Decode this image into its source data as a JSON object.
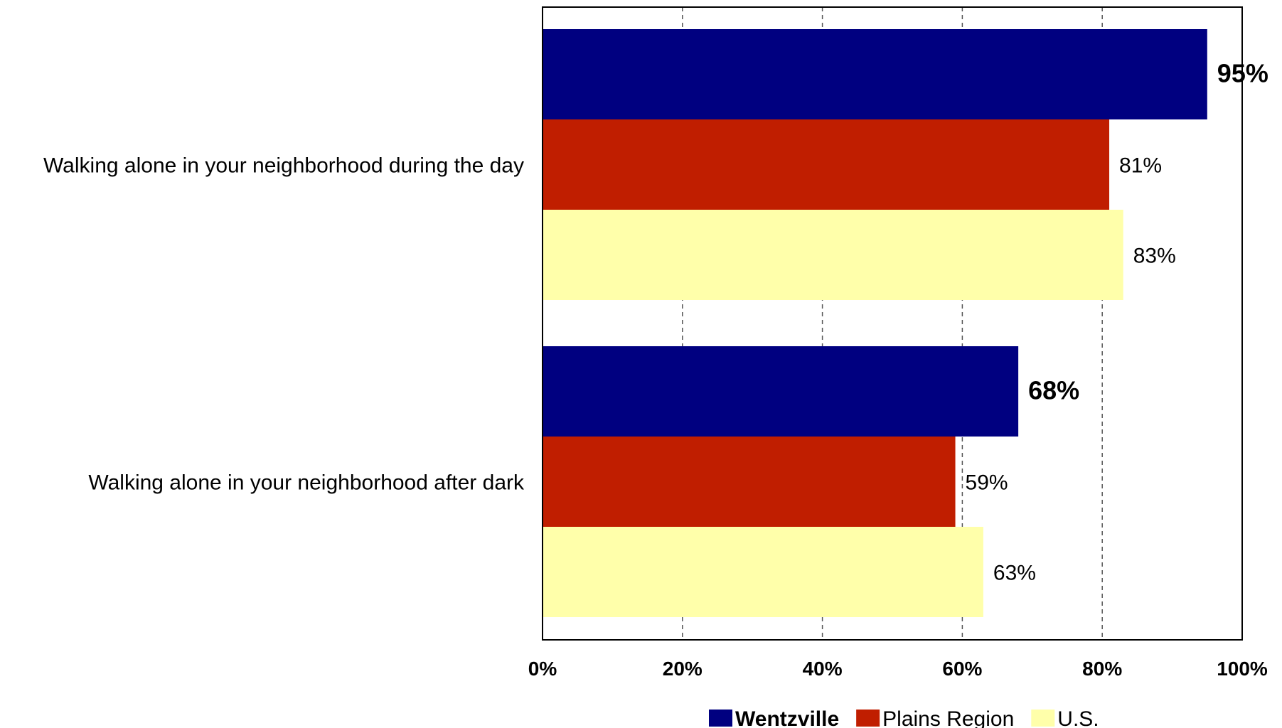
{
  "chart_data": {
    "type": "bar",
    "orientation": "horizontal",
    "categories": [
      "Walking alone in your neighborhood during the day",
      "Walking alone in your neighborhood after dark"
    ],
    "series": [
      {
        "name": "Wentzville",
        "values": [
          95,
          68
        ],
        "labels": [
          "95%",
          "68%"
        ],
        "color": "#000080",
        "bold": true
      },
      {
        "name": "Plains Region",
        "values": [
          81,
          59
        ],
        "labels": [
          "81%",
          "59%"
        ],
        "color": "#C01E00",
        "bold": false
      },
      {
        "name": "U.S.",
        "values": [
          83,
          63
        ],
        "labels": [
          "83%",
          "63%"
        ],
        "color": "#FFFFAA",
        "bold": false
      }
    ],
    "xlim": [
      0,
      100
    ],
    "xticks": [
      0,
      20,
      40,
      60,
      80,
      100
    ],
    "xtick_labels": [
      "0%",
      "20%",
      "40%",
      "60%",
      "80%",
      "100%"
    ],
    "grid": "vertical dashed",
    "legend": "bottom"
  }
}
